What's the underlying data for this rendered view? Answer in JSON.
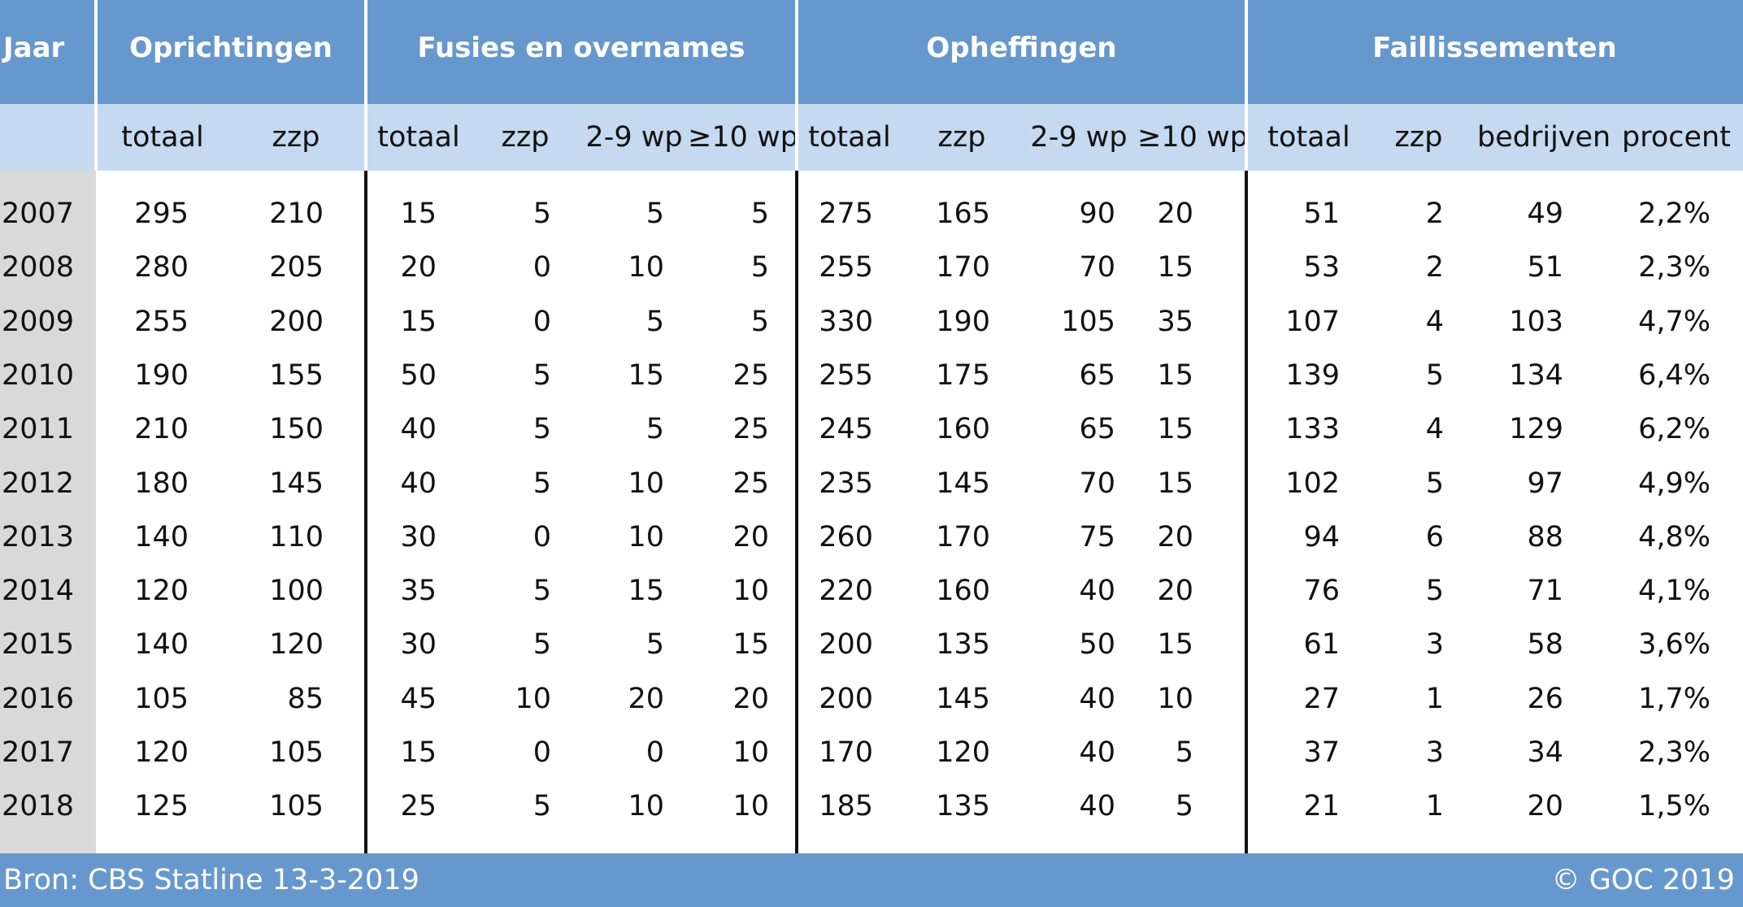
{
  "chart_data": {
    "type": "table",
    "groups": [
      {
        "label": "Jaar"
      },
      {
        "label": "Oprichtingen"
      },
      {
        "label": "Fusies en overnames"
      },
      {
        "label": "Opheffingen"
      },
      {
        "label": "Faillissementen"
      }
    ],
    "columns": [
      "totaal",
      "zzp",
      "totaal",
      "zzp",
      "2-9 wp",
      "≥10 wp",
      "totaal",
      "zzp",
      "2-9 wp",
      "≥10 wp",
      "totaal",
      "zzp",
      "bedrijven",
      "procent"
    ],
    "rows": [
      {
        "year": "2007",
        "cells": [
          "295",
          "210",
          "15",
          "5",
          "5",
          "5",
          "275",
          "165",
          "90",
          "20",
          "51",
          "2",
          "49",
          "2,2%"
        ]
      },
      {
        "year": "2008",
        "cells": [
          "280",
          "205",
          "20",
          "0",
          "10",
          "5",
          "255",
          "170",
          "70",
          "15",
          "53",
          "2",
          "51",
          "2,3%"
        ]
      },
      {
        "year": "2009",
        "cells": [
          "255",
          "200",
          "15",
          "0",
          "5",
          "5",
          "330",
          "190",
          "105",
          "35",
          "107",
          "4",
          "103",
          "4,7%"
        ]
      },
      {
        "year": "2010",
        "cells": [
          "190",
          "155",
          "50",
          "5",
          "15",
          "25",
          "255",
          "175",
          "65",
          "15",
          "139",
          "5",
          "134",
          "6,4%"
        ]
      },
      {
        "year": "2011",
        "cells": [
          "210",
          "150",
          "40",
          "5",
          "5",
          "25",
          "245",
          "160",
          "65",
          "15",
          "133",
          "4",
          "129",
          "6,2%"
        ]
      },
      {
        "year": "2012",
        "cells": [
          "180",
          "145",
          "40",
          "5",
          "10",
          "25",
          "235",
          "145",
          "70",
          "15",
          "102",
          "5",
          "97",
          "4,9%"
        ]
      },
      {
        "year": "2013",
        "cells": [
          "140",
          "110",
          "30",
          "0",
          "10",
          "20",
          "260",
          "170",
          "75",
          "20",
          "94",
          "6",
          "88",
          "4,8%"
        ]
      },
      {
        "year": "2014",
        "cells": [
          "120",
          "100",
          "35",
          "5",
          "15",
          "10",
          "220",
          "160",
          "40",
          "20",
          "76",
          "5",
          "71",
          "4,1%"
        ]
      },
      {
        "year": "2015",
        "cells": [
          "140",
          "120",
          "30",
          "5",
          "5",
          "15",
          "200",
          "135",
          "50",
          "15",
          "61",
          "3",
          "58",
          "3,6%"
        ]
      },
      {
        "year": "2016",
        "cells": [
          "105",
          "85",
          "45",
          "10",
          "20",
          "20",
          "200",
          "145",
          "40",
          "10",
          "27",
          "1",
          "26",
          "1,7%"
        ]
      },
      {
        "year": "2017",
        "cells": [
          "120",
          "105",
          "15",
          "0",
          "0",
          "10",
          "170",
          "120",
          "40",
          "5",
          "37",
          "3",
          "34",
          "2,3%"
        ]
      },
      {
        "year": "2018",
        "cells": [
          "125",
          "105",
          "25",
          "5",
          "10",
          "10",
          "185",
          "135",
          "40",
          "5",
          "21",
          "1",
          "20",
          "1,5%"
        ]
      }
    ]
  },
  "footer": {
    "source": "Bron: CBS Statline 13-3-2019",
    "copyright": "© GOC 2019"
  },
  "colors": {
    "header_bg": "#6798cd",
    "subheader_bg": "#c5d9f0",
    "year_column_bg": "#d9d9d9"
  }
}
